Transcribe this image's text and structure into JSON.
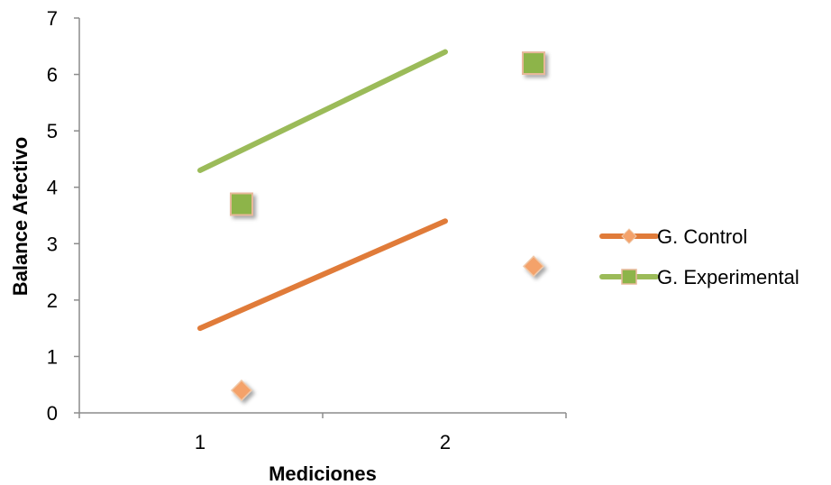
{
  "chart_data": {
    "type": "line",
    "xlabel": "Mediciones",
    "ylabel": "Balance Afectivo",
    "categories": [
      "1",
      "2"
    ],
    "ylim": [
      0,
      7
    ],
    "yticks": [
      "0",
      "1",
      "2",
      "3",
      "4",
      "5",
      "6",
      "7"
    ],
    "grid": false,
    "legend_position": "right",
    "series": [
      {
        "name": "G. Control",
        "values": [
          1.5,
          3.4
        ],
        "color": "#E07B39",
        "marker": "diamond",
        "marker_color": "#F4A26B",
        "marker_points": [
          0.4,
          2.6
        ]
      },
      {
        "name": "G. Experimental",
        "values": [
          4.3,
          6.4
        ],
        "color": "#9BBB59",
        "marker": "square",
        "marker_color": "#8DB44A",
        "marker_points": [
          3.7,
          6.2
        ]
      }
    ]
  }
}
